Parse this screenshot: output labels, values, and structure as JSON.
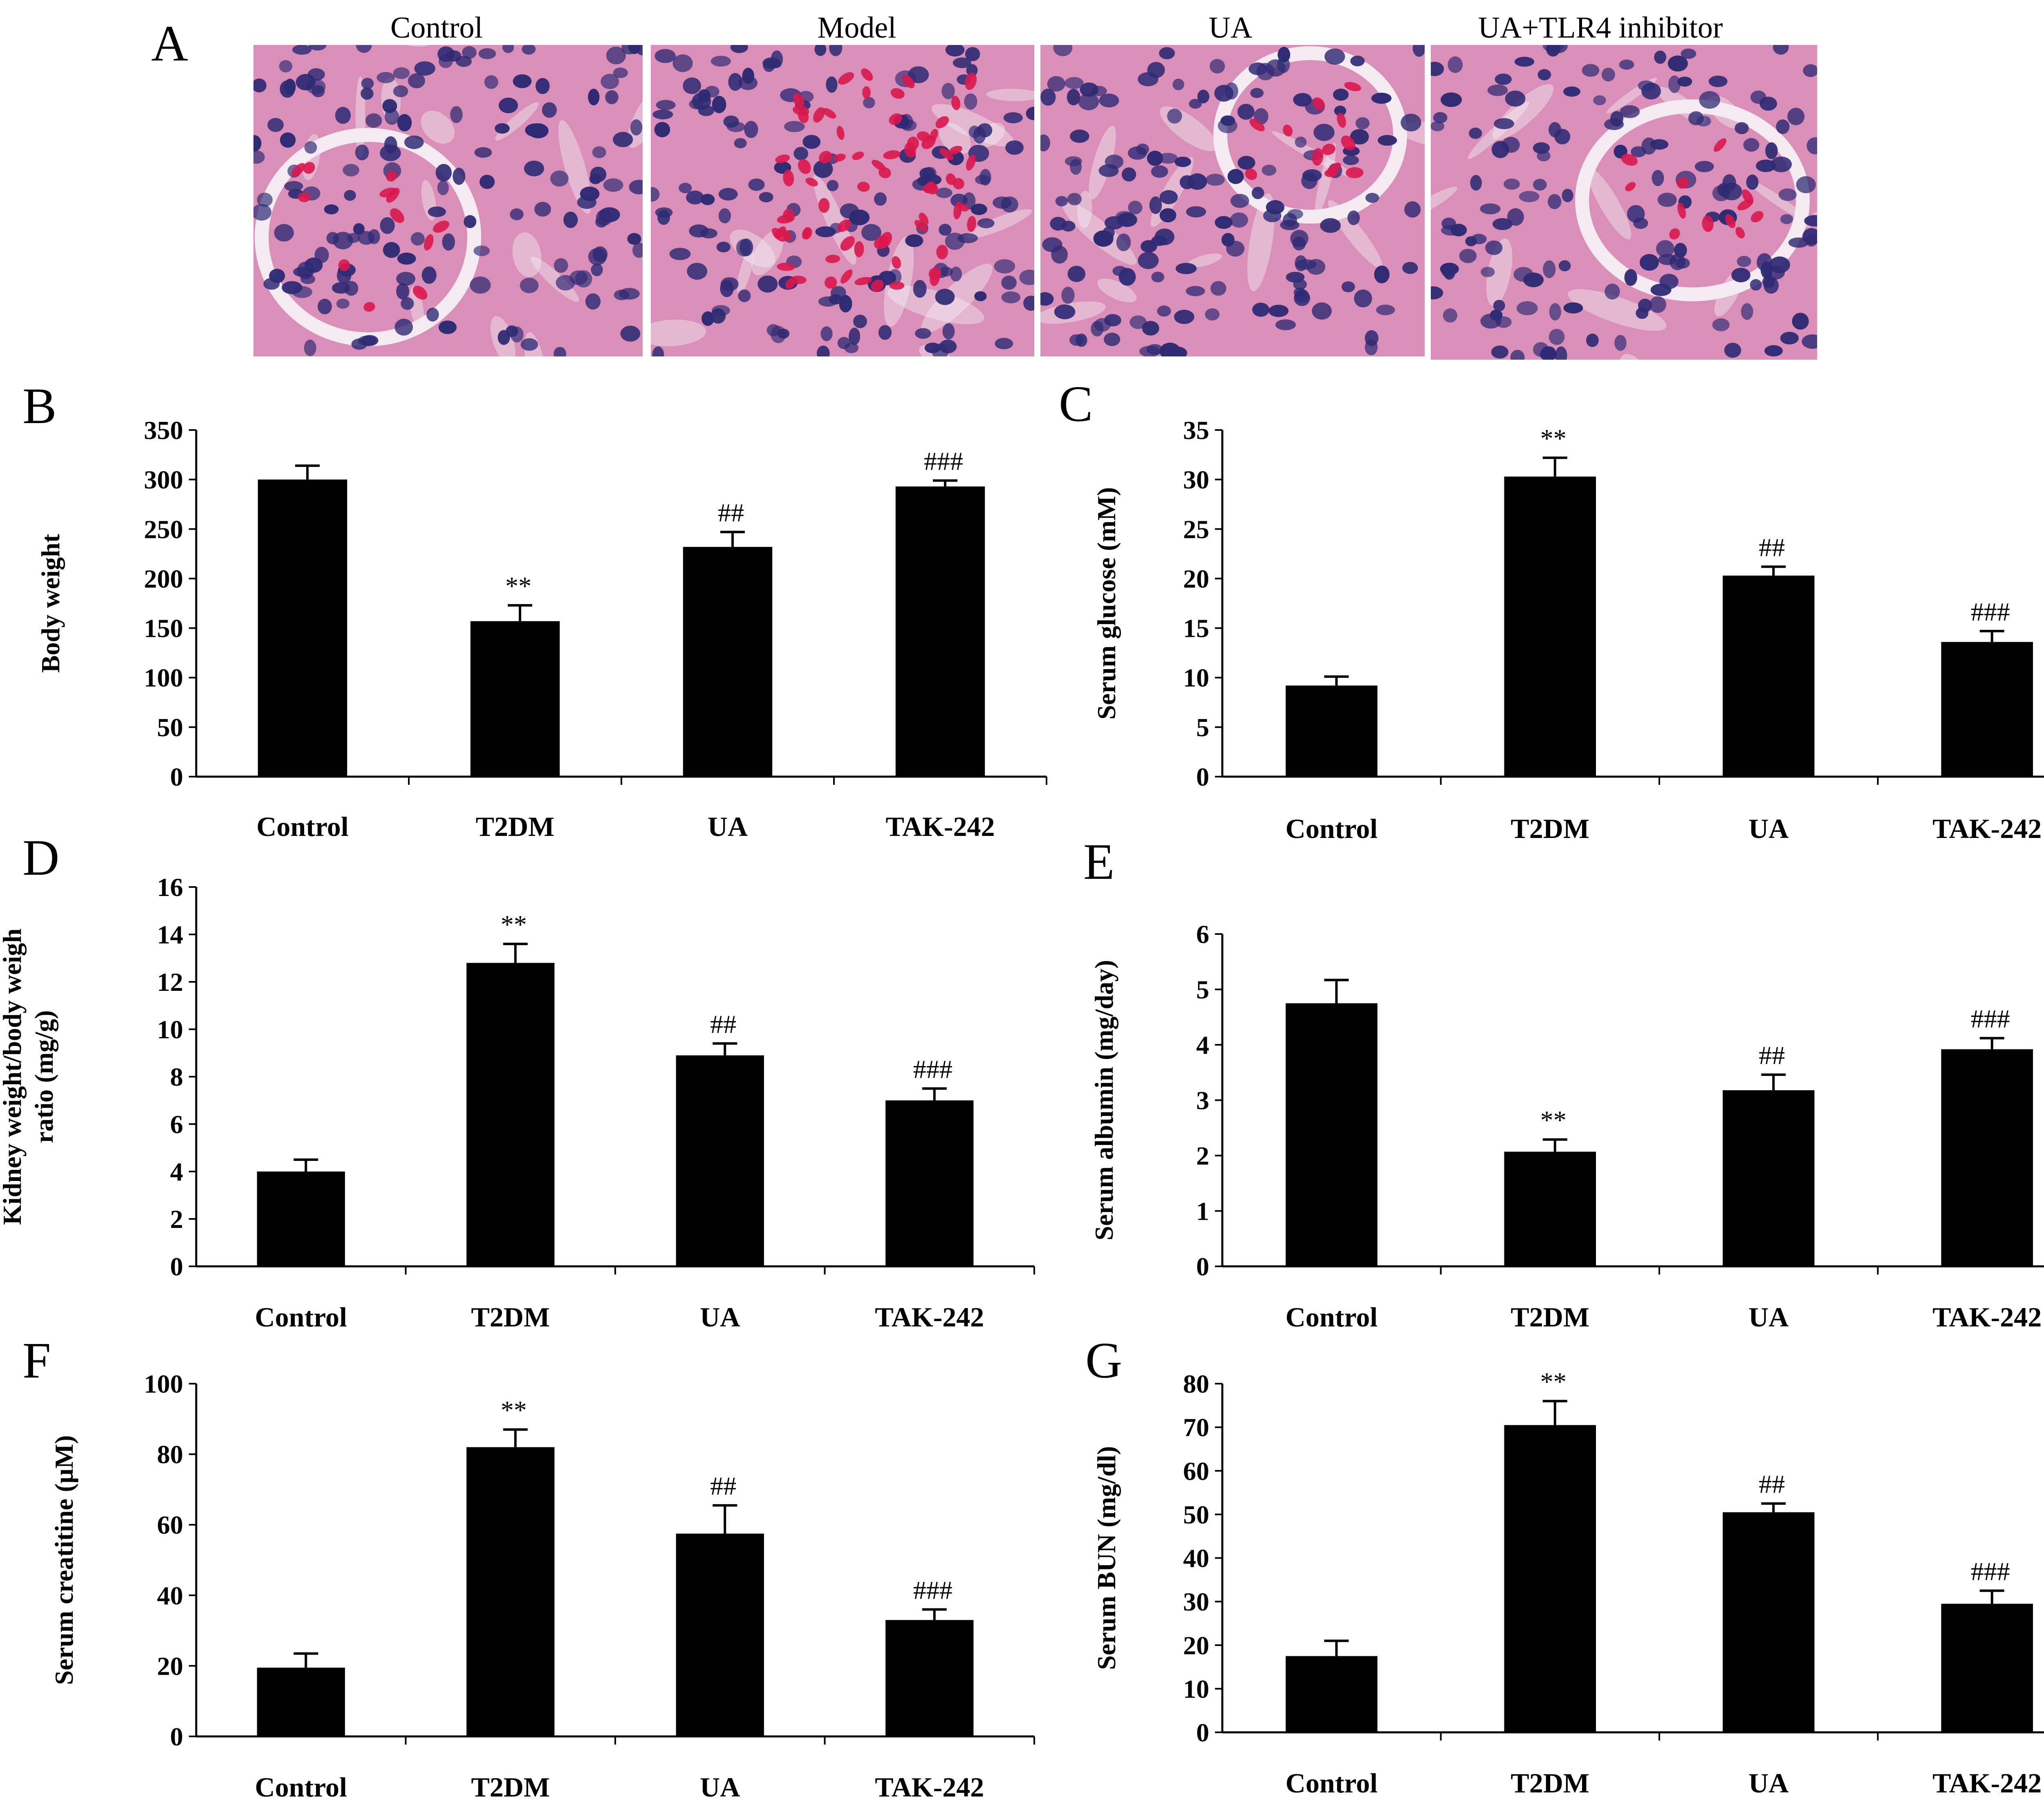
{
  "histology": {
    "letter": "A",
    "colors": {
      "background": "#d98fb8",
      "nucleus": "#2e2a73",
      "rbc": "#d8184e",
      "space": "#f4eaf1"
    },
    "panels": [
      {
        "title": "Control",
        "icon": "glomerulus-micrograph"
      },
      {
        "title": "Model",
        "icon": "hemorrhagic-glomerulus-micrograph"
      },
      {
        "title": "UA",
        "icon": "tubule-micrograph"
      },
      {
        "title": "UA+TLR4 inhibitor",
        "icon": "glomerulus-micrograph"
      }
    ]
  },
  "chart_data": [
    {
      "letter": "B",
      "type": "bar",
      "color": "#000000",
      "categories": [
        "Control",
        "T2DM",
        "UA",
        "TAK-242"
      ],
      "values": [
        300,
        157,
        232,
        293
      ],
      "errors": [
        14,
        16,
        15,
        6
      ],
      "annotations": [
        "",
        "**",
        "##",
        "###"
      ],
      "ylabel": [
        "Body weight"
      ],
      "ylim": [
        0,
        350
      ],
      "yticks": [
        0,
        50,
        100,
        150,
        200,
        250,
        300,
        350
      ]
    },
    {
      "letter": "C",
      "type": "bar",
      "color": "#000000",
      "categories": [
        "Control",
        "T2DM",
        "UA",
        "TAK-242"
      ],
      "values": [
        9.2,
        30.3,
        20.3,
        13.6
      ],
      "errors": [
        0.9,
        1.9,
        0.9,
        1.1
      ],
      "annotations": [
        "",
        "**",
        "##",
        "###"
      ],
      "ylabel": [
        "Serum glucose (mM)"
      ],
      "ylim": [
        0,
        35
      ],
      "yticks": [
        0,
        5,
        10,
        15,
        20,
        25,
        30,
        35
      ]
    },
    {
      "letter": "D",
      "type": "bar",
      "color": "#000000",
      "categories": [
        "Control",
        "T2DM",
        "UA",
        "TAK-242"
      ],
      "values": [
        4.0,
        12.8,
        8.9,
        7.0
      ],
      "errors": [
        0.5,
        0.8,
        0.5,
        0.5
      ],
      "annotations": [
        "",
        "**",
        "##",
        "###"
      ],
      "ylabel": [
        "Kidney weight/body weigh",
        "ratio (mg/g)"
      ],
      "ylim": [
        0,
        16
      ],
      "yticks": [
        0,
        2,
        4,
        6,
        8,
        10,
        12,
        14,
        16
      ]
    },
    {
      "letter": "E",
      "type": "bar",
      "color": "#000000",
      "categories": [
        "Control",
        "T2DM",
        "UA",
        "TAK-242"
      ],
      "values": [
        4.75,
        2.07,
        3.18,
        3.92
      ],
      "errors": [
        0.42,
        0.22,
        0.28,
        0.2
      ],
      "annotations": [
        "",
        "**",
        "##",
        "###"
      ],
      "ylabel": [
        "Serum  albumin (mg/day)"
      ],
      "ylim": [
        0,
        6
      ],
      "yticks": [
        0,
        1,
        2,
        3,
        4,
        5,
        6
      ]
    },
    {
      "letter": "F",
      "type": "bar",
      "color": "#000000",
      "categories": [
        "Control",
        "T2DM",
        "UA",
        "TAK-242"
      ],
      "values": [
        19.5,
        82,
        57.5,
        33
      ],
      "errors": [
        4,
        5,
        8,
        3
      ],
      "annotations": [
        "",
        "**",
        "##",
        "###"
      ],
      "ylabel": [
        "Serum creatitine (μM)"
      ],
      "ylim": [
        0,
        100
      ],
      "yticks": [
        0,
        20,
        40,
        60,
        80,
        100
      ]
    },
    {
      "letter": "G",
      "type": "bar",
      "color": "#000000",
      "categories": [
        "Control",
        "T2DM",
        "UA",
        "TAK-242"
      ],
      "values": [
        17.5,
        70.5,
        50.5,
        29.5
      ],
      "errors": [
        3.5,
        5.5,
        2,
        3
      ],
      "annotations": [
        "",
        "**",
        "##",
        "###"
      ],
      "ylabel": [
        "Serum BUN (mg/dl)"
      ],
      "ylim": [
        0,
        80
      ],
      "yticks": [
        0,
        10,
        20,
        30,
        40,
        50,
        60,
        70,
        80
      ]
    }
  ]
}
